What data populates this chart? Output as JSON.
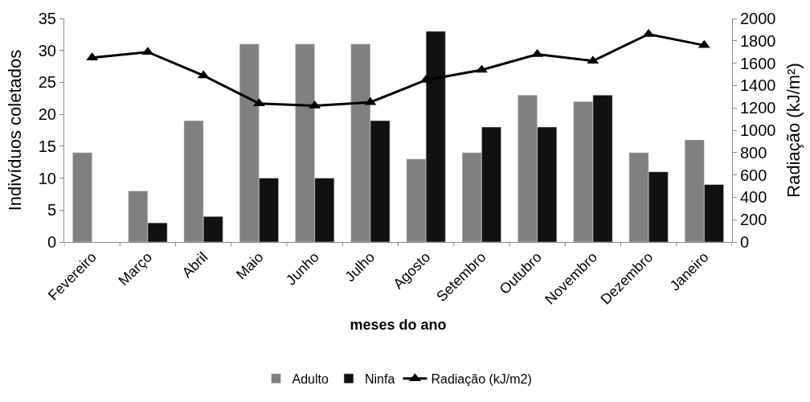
{
  "chart_data": {
    "type": "bar",
    "xlabel": "meses do ano",
    "ylabel": "Indivíduos coletados",
    "y2label": "Radiação (kJ/m²)",
    "categories": [
      "Fevereiro",
      "Março",
      "Abril",
      "Maio",
      "Junho",
      "Julho",
      "Agosto",
      "Setembro",
      "Outubro",
      "Novembro",
      "Dezembro",
      "Janeiro"
    ],
    "series": [
      {
        "name": "Adulto",
        "color": "#808080",
        "values": [
          14,
          8,
          19,
          31,
          31,
          31,
          13,
          14,
          23,
          22,
          14,
          16
        ]
      },
      {
        "name": "Ninfa",
        "color": "#111111",
        "values": [
          null,
          3,
          4,
          10,
          10,
          19,
          33,
          18,
          18,
          23,
          11,
          9
        ]
      },
      {
        "name": "Radiação (kJ/m2)",
        "type": "line",
        "axis": "y2",
        "color": "#000000",
        "marker": "triangle",
        "values": [
          1650,
          1700,
          1490,
          1240,
          1220,
          1250,
          1450,
          1540,
          1680,
          1620,
          1860,
          1760
        ]
      }
    ],
    "ylim": [
      0,
      35
    ],
    "yticks": [
      0,
      5,
      10,
      15,
      20,
      25,
      30,
      35
    ],
    "y2lim": [
      0,
      2000
    ],
    "y2ticks": [
      0,
      200,
      400,
      600,
      800,
      1000,
      1200,
      1400,
      1600,
      1800,
      2000
    ],
    "legend": "bottom"
  }
}
